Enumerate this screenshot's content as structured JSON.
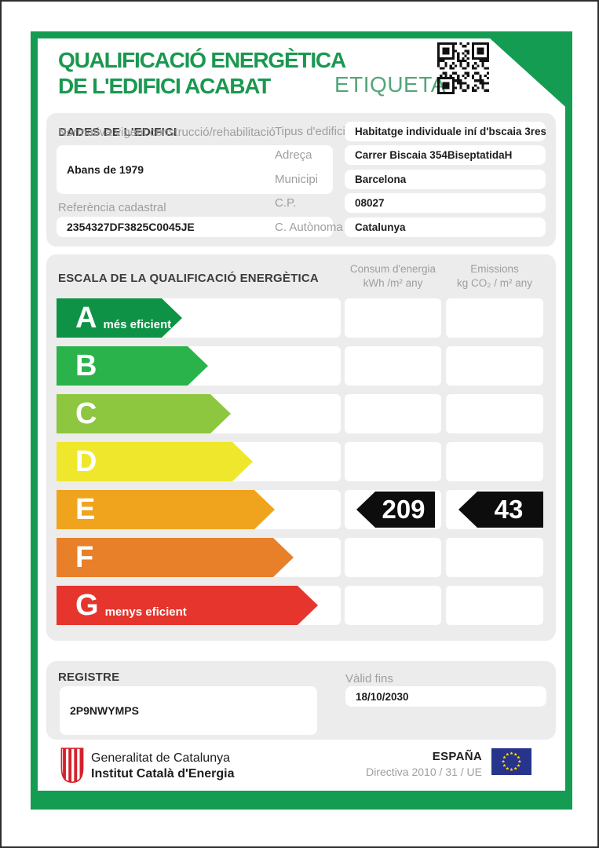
{
  "header": {
    "title_line1": "QUALIFICACIÓ ENERGÈTICA",
    "title_line2": "DE L'EDIFICI ACABAT",
    "etiqueta": "ETIQUETA"
  },
  "building": {
    "section_title": "DADES DE L'EDIFICI",
    "normativa_label": "Normativa vigent construcció/rehabilitació",
    "normativa_value": "Abans de 1979",
    "cadastral_label": "Referència cadastral",
    "cadastral_value": "2354327DF3825C0045JE",
    "fields": [
      {
        "label": "Tipus d'edifici",
        "value": "Habitatge individuale iní d'bscaia 3res"
      },
      {
        "label": "Adreça",
        "value": "Carrer Biscaia 354BiseptatidaH"
      },
      {
        "label": "Municipi",
        "value": "Barcelona"
      },
      {
        "label": "C.P.",
        "value": "08027"
      },
      {
        "label": "C. Autònoma",
        "value": "Catalunya"
      }
    ]
  },
  "scale": {
    "section_title": "ESCALA DE LA QUALIFICACIÓ ENERGÈTICA",
    "consum_header": "Consum d'energia",
    "consum_unit": "kWh /m² any",
    "emissions_header": "Emissions",
    "emissions_unit": "kg CO₂ / m² any",
    "rating": {
      "letter": "E",
      "consum": "209",
      "emissions": "43"
    },
    "rows": [
      {
        "letter": "A",
        "label": "més eficient",
        "color": "#0e9346"
      },
      {
        "letter": "B",
        "label": "",
        "color": "#2ab34a"
      },
      {
        "letter": "C",
        "label": "",
        "color": "#8dc63f"
      },
      {
        "letter": "D",
        "label": "",
        "color": "#efe72b"
      },
      {
        "letter": "E",
        "label": "",
        "color": "#f0a41e",
        "consum": "209",
        "emissions": "43"
      },
      {
        "letter": "F",
        "label": "",
        "color": "#e8802a"
      },
      {
        "letter": "G",
        "label": "menys eficient",
        "color": "#e5352c"
      }
    ]
  },
  "registre": {
    "section_title": "REGISTRE",
    "value": "2P9NWYMPS",
    "valid_label": "Vàlid fins",
    "valid_value": "18/10/2030"
  },
  "footer": {
    "org_line1": "Generalitat de Catalunya",
    "org_line2": "Institut Català d'Energia",
    "country": "ESPAÑA",
    "directive": "Directiva 2010 / 31 / UE"
  },
  "colors": {
    "frame_green": "#149c52",
    "title_green": "#1a9850",
    "panel_gray": "#ececec",
    "badge_black": "#0d0d0d",
    "eu_blue": "#26348b"
  }
}
